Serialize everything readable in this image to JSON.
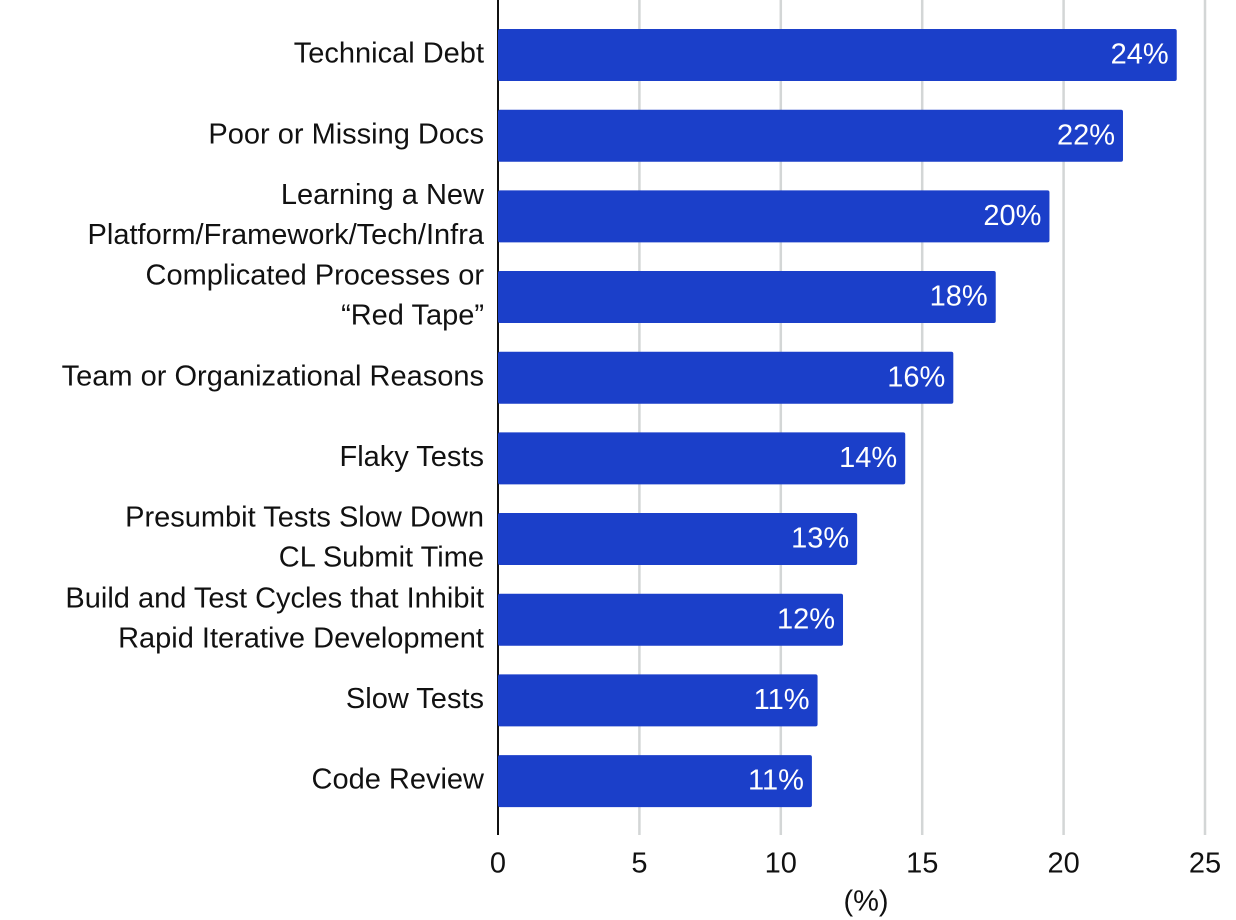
{
  "chart_data": {
    "type": "hbar",
    "categories": [
      [
        "Technical Debt"
      ],
      [
        "Poor or Missing Docs"
      ],
      [
        "Learning a New",
        "Platform/Framework/Tech/Infra"
      ],
      [
        "Complicated Processes or",
        "“Red Tape”"
      ],
      [
        "Team or Organizational Reasons"
      ],
      [
        "Flaky Tests"
      ],
      [
        "Presumbit Tests Slow Down",
        "CL Submit Time"
      ],
      [
        "Build and Test Cycles that Inhibit",
        "Rapid Iterative Development"
      ],
      [
        "Slow Tests"
      ],
      [
        "Code Review"
      ]
    ],
    "values": [
      24.0,
      22.1,
      19.5,
      17.6,
      16.1,
      14.4,
      12.7,
      12.2,
      11.3,
      11.1
    ],
    "value_labels": [
      "24%",
      "22%",
      "20%",
      "18%",
      "16%",
      "14%",
      "13%",
      "12%",
      "11%",
      "11%"
    ],
    "color": "#1b3fc9",
    "xlim": [
      0,
      25
    ],
    "xticks": [
      0,
      5,
      10,
      15,
      20,
      25
    ],
    "xlabel": "(%)",
    "grid": true
  }
}
